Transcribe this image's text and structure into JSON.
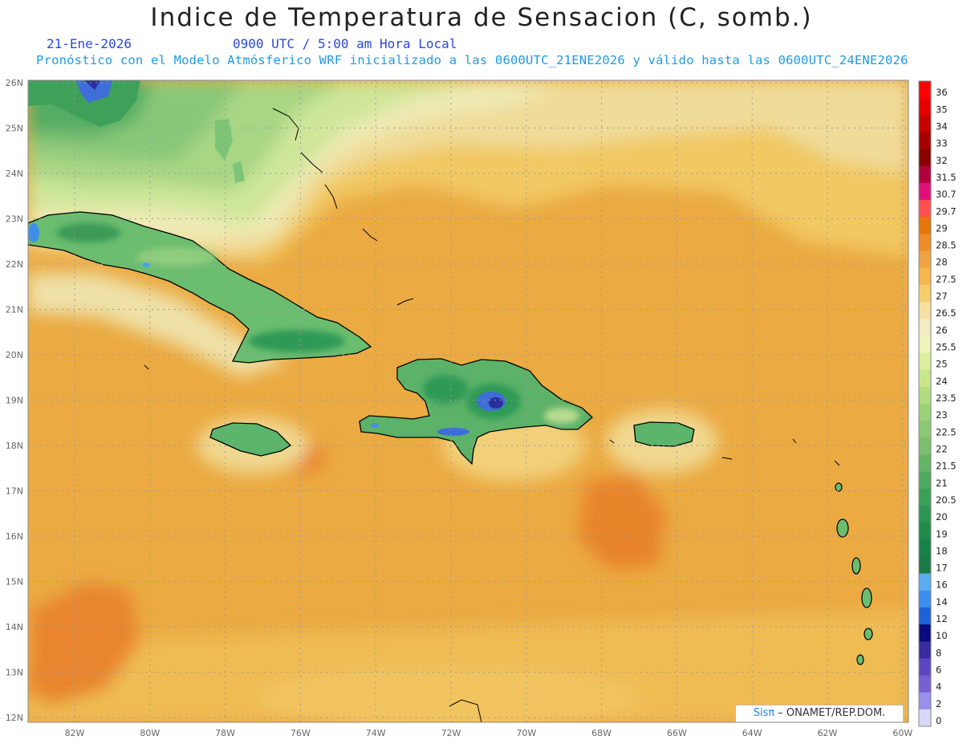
{
  "header": {
    "title": "Indice de Temperatura de Sensacion (C, somb.)",
    "date": "21-Ene-2026",
    "time": "0900 UTC / 5:00 am Hora Local",
    "forecast": "Pronóstico con el Modelo Atmósferico WRF inicializado a las 0600UTC_21ENE2026 y válido hasta las  0600UTC_24ENE2026"
  },
  "map": {
    "lat_labels": [
      "26N",
      "25N",
      "24N",
      "23N",
      "22N",
      "21N",
      "20N",
      "19N",
      "18N",
      "17N",
      "16N",
      "15N",
      "14N",
      "13N",
      "12N"
    ],
    "lon_labels": [
      "82W",
      "80W",
      "78W",
      "76W",
      "74W",
      "72W",
      "70W",
      "68W",
      "66W",
      "64W",
      "62W",
      "60W"
    ],
    "colors": {
      "ocean_warm": "#e9a13a",
      "ocean_hot": "#e8842c",
      "ocean_mild": "#f2c35a",
      "light": "#eee7b5",
      "green_pale": "#b8dc8e",
      "green_mid": "#7cc576",
      "green_dark": "#2f9a56",
      "blue_cold": "#3f6ed8",
      "blue_deep": "#2a2f9e"
    }
  },
  "colorbar": {
    "levels": [
      "36",
      "35",
      "34",
      "33",
      "32",
      "31.5",
      "30.7",
      "29.7",
      "29",
      "28.5",
      "28",
      "27.5",
      "27",
      "26.5",
      "26",
      "25.5",
      "25",
      "24",
      "23.5",
      "23",
      "22.5",
      "22",
      "21.5",
      "21",
      "20.5",
      "20",
      "19",
      "18",
      "17",
      "16",
      "14",
      "12",
      "10",
      "8",
      "6",
      "4",
      "2",
      "0"
    ],
    "colors": [
      "#ff0000",
      "#e60000",
      "#c80000",
      "#a60000",
      "#880000",
      "#b0003c",
      "#e0107a",
      "#ff5050",
      "#e6760a",
      "#ee8c2a",
      "#f0a244",
      "#f4b84e",
      "#f5cd6a",
      "#f5e0a0",
      "#f3ecc4",
      "#f1f3bc",
      "#dcee9e",
      "#c8e68a",
      "#b2dc82",
      "#9cd27a",
      "#8cc876",
      "#7abe6e",
      "#64b466",
      "#4eaa5e",
      "#3aa058",
      "#2c9652",
      "#1f8c4c",
      "#17824a",
      "#1a7a46",
      "#5aacf0",
      "#3c8ef0",
      "#1e62d8",
      "#0a0a80",
      "#3a2aa0",
      "#5c46c2",
      "#7660d2",
      "#9890ea",
      "#d8d8f8"
    ]
  },
  "credit": {
    "logo": "Sisπ",
    "text": " – ONAMET/REP.DOM."
  }
}
